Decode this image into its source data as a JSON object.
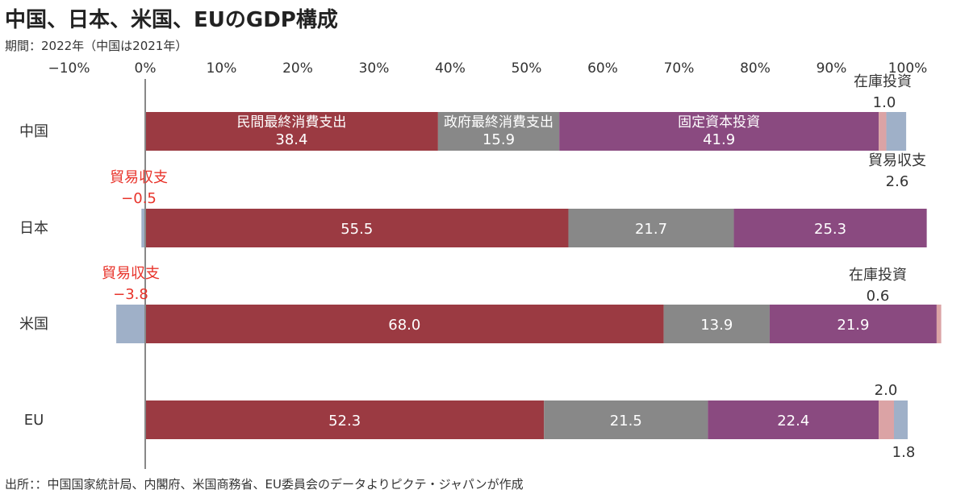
{
  "title": "中国、日本、米国、EUのGDP構成",
  "subtitle": "期間：2022年（中国は2021年）",
  "source": "出所：：中国国家統計局、内閣府、米国商務省、EU委員会のデータよりピクテ・ジャパンが作成",
  "colors": {
    "private_consumption": "#9b3a42",
    "government_consumption": "#888888",
    "fixed_investment": "#8a4a80",
    "inventory": "#dba3a5",
    "trade_balance": "#9fb0c8",
    "axis": "#888888",
    "callout_red": "#e8332a"
  },
  "chart_data": {
    "type": "bar",
    "orientation": "horizontal",
    "stacked": true,
    "xlim": [
      -10,
      100
    ],
    "x_ticks": [
      "−10%",
      "0%",
      "10%",
      "20%",
      "30%",
      "40%",
      "50%",
      "60%",
      "70%",
      "80%",
      "90%",
      "100%"
    ],
    "categories": [
      "中国",
      "日本",
      "米国",
      "EU"
    ],
    "segment_order": [
      "trade_balance",
      "private_consumption",
      "government_consumption",
      "fixed_investment",
      "inventory"
    ],
    "rows": [
      {
        "category": "中国",
        "private_consumption": 38.4,
        "government_consumption": 15.9,
        "fixed_investment": 41.9,
        "inventory": 1.0,
        "trade_balance": 2.6
      },
      {
        "category": "日本",
        "private_consumption": 55.5,
        "government_consumption": 21.7,
        "fixed_investment": 25.3,
        "inventory": 0,
        "trade_balance": -0.5
      },
      {
        "category": "米国",
        "private_consumption": 68.0,
        "government_consumption": 13.9,
        "fixed_investment": 21.9,
        "inventory": 0.6,
        "trade_balance": -3.8
      },
      {
        "category": "EU",
        "private_consumption": 52.3,
        "government_consumption": 21.5,
        "fixed_investment": 22.4,
        "inventory": 2.0,
        "trade_balance": 1.8
      }
    ],
    "series_labels": {
      "private_consumption": "民間最終消費支出",
      "government_consumption": "政府最終消費支出",
      "fixed_investment": "固定資本投資"
    },
    "bar_value_labels": [
      [
        "38.4",
        "15.9",
        "41.9"
      ],
      [
        "55.5",
        "21.7",
        "25.3"
      ],
      [
        "68.0",
        "13.9",
        "21.9"
      ],
      [
        "52.3",
        "21.5",
        "22.4"
      ]
    ],
    "annotations": [
      {
        "text": "在庫投資",
        "row": 0,
        "position": "above-right",
        "color": "dark"
      },
      {
        "text": "1.0",
        "row": 0,
        "position": "above-right-value",
        "color": "dark"
      },
      {
        "text": "貿易収支",
        "row": 0,
        "position": "below-right",
        "color": "dark"
      },
      {
        "text": "2.6",
        "row": 0,
        "position": "below-right-value",
        "color": "dark"
      },
      {
        "text": "貿易収支",
        "row": 1,
        "position": "above-left",
        "color": "red"
      },
      {
        "text": "−0.5",
        "row": 1,
        "position": "above-left-value",
        "color": "red"
      },
      {
        "text": "貿易収支",
        "row": 2,
        "position": "above-left",
        "color": "red"
      },
      {
        "text": "−3.8",
        "row": 2,
        "position": "above-left-value",
        "color": "red"
      },
      {
        "text": "在庫投資",
        "row": 2,
        "position": "above-right",
        "color": "dark"
      },
      {
        "text": "0.6",
        "row": 2,
        "position": "above-right-value",
        "color": "dark"
      },
      {
        "text": "2.0",
        "row": 3,
        "position": "above-right-value",
        "color": "dark"
      },
      {
        "text": "1.8",
        "row": 3,
        "position": "below-right-value",
        "color": "dark"
      }
    ]
  }
}
